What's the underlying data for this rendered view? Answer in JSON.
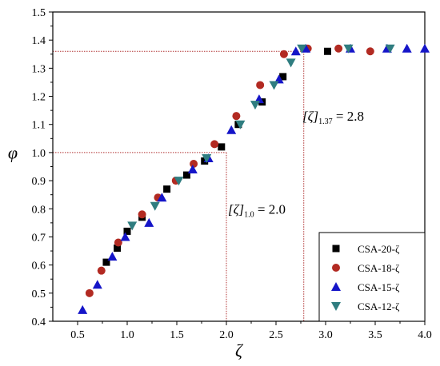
{
  "chart_data": {
    "type": "scatter",
    "xlabel": "ζ",
    "ylabel": "φ",
    "xlim": [
      0.25,
      4.0
    ],
    "ylim": [
      0.4,
      1.5
    ],
    "xticks": [
      0.5,
      1.0,
      1.5,
      2.0,
      2.5,
      3.0,
      3.5,
      4.0
    ],
    "xtick_labels": [
      "0.5",
      "1.0",
      "1.5",
      "2.0",
      "2.5",
      "3.0",
      "3.5",
      "4.0"
    ],
    "yticks": [
      0.4,
      0.5,
      0.6,
      0.7,
      0.8,
      0.9,
      1.0,
      1.1,
      1.2,
      1.3,
      1.4,
      1.5
    ],
    "ytick_labels": [
      "0.4",
      "0.5",
      "0.6",
      "0.7",
      "0.8",
      "0.9",
      "1.0",
      "1.1",
      "1.2",
      "1.3",
      "1.4",
      "1.5"
    ],
    "grid": false,
    "legend_position": "bottom-right",
    "series": [
      {
        "name": "CSA-20-ζ",
        "marker": "square",
        "color": "#000000",
        "x": [
          0.79,
          0.9,
          1.0,
          1.15,
          1.4,
          1.6,
          1.78,
          1.95,
          2.12,
          2.36,
          2.57,
          3.02
        ],
        "y": [
          0.61,
          0.66,
          0.72,
          0.77,
          0.87,
          0.92,
          0.97,
          1.02,
          1.1,
          1.18,
          1.27,
          1.36
        ]
      },
      {
        "name": "CSA-18-ζ",
        "marker": "circle",
        "color": "#b22a22",
        "x": [
          0.62,
          0.74,
          0.91,
          1.15,
          1.31,
          1.49,
          1.67,
          1.88,
          2.1,
          2.34,
          2.58,
          2.82,
          3.13,
          3.45
        ],
        "y": [
          0.5,
          0.58,
          0.68,
          0.78,
          0.84,
          0.9,
          0.96,
          1.03,
          1.13,
          1.24,
          1.35,
          1.37,
          1.37,
          1.36
        ]
      },
      {
        "name": "CSA-15-ζ",
        "marker": "triangle-up",
        "color": "#1515c8",
        "x": [
          0.55,
          0.7,
          0.85,
          0.98,
          1.22,
          1.35,
          1.66,
          1.82,
          2.05,
          2.33,
          2.53,
          2.7,
          2.8,
          3.25,
          3.62,
          3.82,
          4.0
        ],
        "y": [
          0.44,
          0.53,
          0.63,
          0.7,
          0.75,
          0.84,
          0.94,
          0.98,
          1.08,
          1.19,
          1.26,
          1.36,
          1.37,
          1.37,
          1.37,
          1.37,
          1.37
        ]
      },
      {
        "name": "CSA-12-ζ",
        "marker": "triangle-down",
        "color": "#2f7d80",
        "x": [
          1.05,
          1.28,
          1.52,
          1.8,
          2.14,
          2.29,
          2.48,
          2.65,
          2.76,
          3.23,
          3.65
        ],
        "y": [
          0.74,
          0.81,
          0.9,
          0.98,
          1.1,
          1.17,
          1.24,
          1.32,
          1.37,
          1.37,
          1.37
        ]
      }
    ],
    "reference_lines": [
      {
        "x": 2.0,
        "y": 1.0
      },
      {
        "x": 2.78,
        "y": 1.36
      }
    ],
    "annotations": [
      {
        "main": "[ζ]",
        "sub": "1.0",
        "value": "= 2.0",
        "x": 2.0,
        "y": 0.8
      },
      {
        "main": "[ζ]",
        "sub": "1.37",
        "value": "= 2.8",
        "x": 2.75,
        "y": 1.13
      }
    ],
    "reference_line_color": "#b03030"
  }
}
